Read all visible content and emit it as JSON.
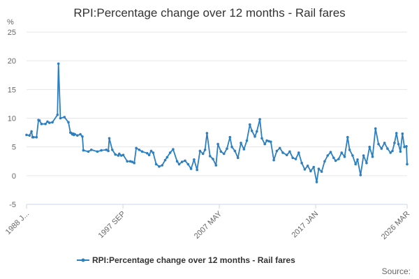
{
  "chart_data": {
    "type": "line",
    "title": "RPI:Percentage change over 12 months - Rail fares",
    "ylabel": "%",
    "xlabel": "",
    "ylim": [
      -5,
      25
    ],
    "yticks": [
      -5,
      0,
      5,
      10,
      15,
      20,
      25
    ],
    "xlim": [
      1988.0,
      2026.17
    ],
    "xticks": [
      {
        "x": 1988.0,
        "label": "1988 J..."
      },
      {
        "x": 1997.67,
        "label": "1997 SEP"
      },
      {
        "x": 2007.33,
        "label": "2007 MAY"
      },
      {
        "x": 2017.0,
        "label": "2017 JAN"
      },
      {
        "x": 2026.17,
        "label": "2026 MAR"
      }
    ],
    "grid": true,
    "legend_position": "bottom",
    "series": [
      {
        "name": "RPI:Percentage change over 12 months - Rail fares",
        "color": "#2c7fc1",
        "x": [
          1988.0,
          1988.3,
          1988.5,
          1988.6,
          1988.7,
          1989.0,
          1989.2,
          1989.3,
          1989.5,
          1989.9,
          1990.1,
          1990.3,
          1990.6,
          1991.1,
          1991.2,
          1991.4,
          1991.8,
          1992.2,
          1992.4,
          1992.5,
          1992.6,
          1992.7,
          1992.75,
          1992.85,
          1993.1,
          1993.4,
          1993.6,
          1993.7,
          1994.2,
          1994.5,
          1995.1,
          1995.5,
          1996.0,
          1996.2,
          1996.3,
          1996.6,
          1996.9,
          1997.2,
          1997.3,
          1997.5,
          1997.7,
          1998.1,
          1998.4,
          1998.6,
          1998.8,
          1999.0,
          1999.3,
          1999.6,
          2000.1,
          2000.3,
          2000.5,
          2000.7,
          2001.0,
          2001.3,
          2001.6,
          2001.9,
          2002.1,
          2002.4,
          2002.7,
          2003.1,
          2003.3,
          2003.6,
          2003.9,
          2004.2,
          2004.5,
          2004.8,
          2005.1,
          2005.4,
          2005.7,
          2005.9,
          2006.1,
          2006.4,
          2006.7,
          2007.0,
          2007.2,
          2007.5,
          2007.8,
          2008.1,
          2008.4,
          2008.6,
          2008.9,
          2009.2,
          2009.5,
          2009.8,
          2010.1,
          2010.4,
          2010.6,
          2010.9,
          2011.1,
          2011.4,
          2011.6,
          2011.9,
          2012.1,
          2012.3,
          2012.5,
          2012.8,
          2013.1,
          2013.4,
          2013.7,
          2014.1,
          2014.4,
          2014.7,
          2015.0,
          2015.3,
          2015.6,
          2015.9,
          2016.2,
          2016.5,
          2016.8,
          2017.1,
          2017.3,
          2017.6,
          2017.9,
          2018.2,
          2018.5,
          2018.8,
          2019.0,
          2019.3,
          2019.6,
          2019.9,
          2020.2,
          2020.4,
          2020.7,
          2021.0,
          2021.2,
          2021.5,
          2021.8,
          2022.1,
          2022.4,
          2022.7,
          2023.0,
          2023.3,
          2023.6,
          2023.9,
          2024.2,
          2024.5,
          2024.7,
          2024.9,
          2025.1,
          2025.3,
          2025.5,
          2025.7,
          2025.9,
          2026.1,
          2026.17
        ],
        "values": [
          7.1,
          7.0,
          7.7,
          6.7,
          6.7,
          6.7,
          9.7,
          9.6,
          9.0,
          9.0,
          9.4,
          9.2,
          9.3,
          10.6,
          19.5,
          10.0,
          10.2,
          9.3,
          7.5,
          7.4,
          7.2,
          7.3,
          7.1,
          7.2,
          7.0,
          7.2,
          6.8,
          4.4,
          4.2,
          4.5,
          4.2,
          4.4,
          4.5,
          4.3,
          6.5,
          4.5,
          3.7,
          3.5,
          3.8,
          3.5,
          3.6,
          2.5,
          2.5,
          2.4,
          2.2,
          4.8,
          4.5,
          4.2,
          3.9,
          3.6,
          4.3,
          4.0,
          2.0,
          1.6,
          1.8,
          2.7,
          3.2,
          4.0,
          4.6,
          2.5,
          2.0,
          2.4,
          2.6,
          2.0,
          1.2,
          2.8,
          1.0,
          4.3,
          3.8,
          4.5,
          7.4,
          3.4,
          2.9,
          1.8,
          5.5,
          4.2,
          3.8,
          4.7,
          6.7,
          5.0,
          4.3,
          3.1,
          5.7,
          4.6,
          6.1,
          8.9,
          7.8,
          6.8,
          7.7,
          9.8,
          6.5,
          5.5,
          6.1,
          6.0,
          5.9,
          2.7,
          4.3,
          4.8,
          4.0,
          3.6,
          4.2,
          3.1,
          2.9,
          4.0,
          2.2,
          1.1,
          1.7,
          0.8,
          1.5,
          -1.1,
          1.2,
          0.7,
          2.5,
          3.5,
          4.1,
          3.1,
          2.6,
          2.9,
          4.0,
          3.3,
          6.7,
          4.5,
          3.5,
          2.0,
          2.8,
          0.1,
          3.5,
          2.2,
          5.0,
          3.3,
          8.2,
          5.5,
          4.7,
          5.7,
          4.7,
          4.0,
          4.3,
          5.7,
          7.4,
          5.5,
          4.2,
          7.3,
          5.0,
          5.1,
          2.0
        ]
      }
    ],
    "source_label": "Source:"
  }
}
